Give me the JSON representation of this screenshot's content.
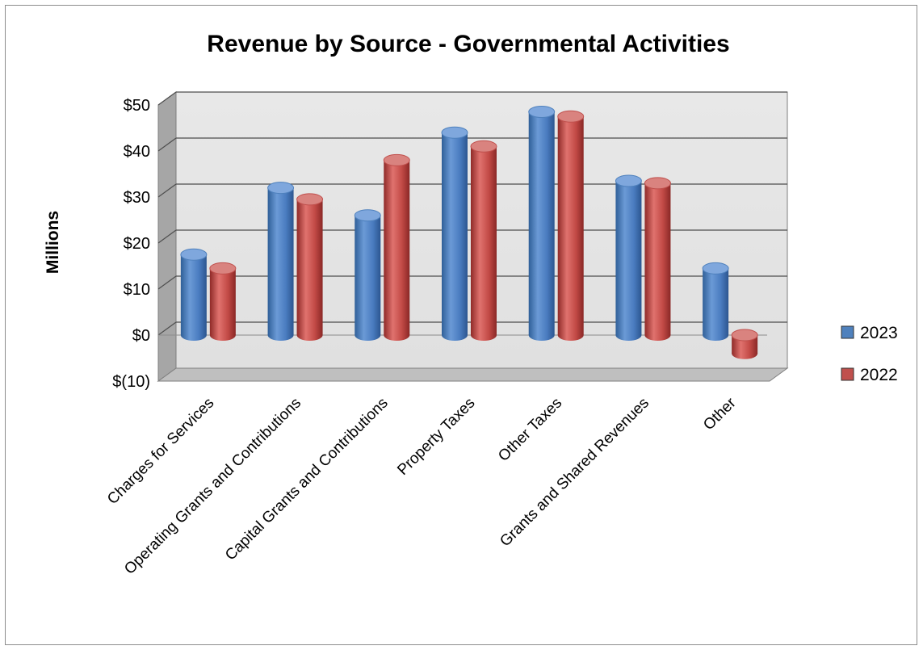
{
  "chart_data": {
    "type": "bar",
    "style": "3d-cylinder",
    "title": "Revenue by Source - Governmental Activities",
    "ylabel": "Millions",
    "xlabel": "",
    "categories": [
      "Charges for Services",
      "Operating Grants and Contributions",
      "Capital Grants and Contributions",
      "Property Taxes",
      "Other Taxes",
      "Grants and Shared Revenues",
      "Other"
    ],
    "series": [
      {
        "name": "2023",
        "color": "#4f81bd",
        "values": [
          17.5,
          32,
          26,
          44,
          48.5,
          33.5,
          14.5
        ]
      },
      {
        "name": "2022",
        "color": "#c0504d",
        "values": [
          14.5,
          29.5,
          38,
          41,
          47.5,
          33,
          -4
        ]
      }
    ],
    "ylim": [
      -10,
      50
    ],
    "yticks": [
      50,
      40,
      30,
      20,
      10,
      0,
      -10
    ],
    "ytick_labels": [
      "$50",
      "$40",
      "$30",
      "$20",
      "$10",
      "$0",
      "$(10)"
    ],
    "grid": true,
    "legend_position": "right"
  }
}
